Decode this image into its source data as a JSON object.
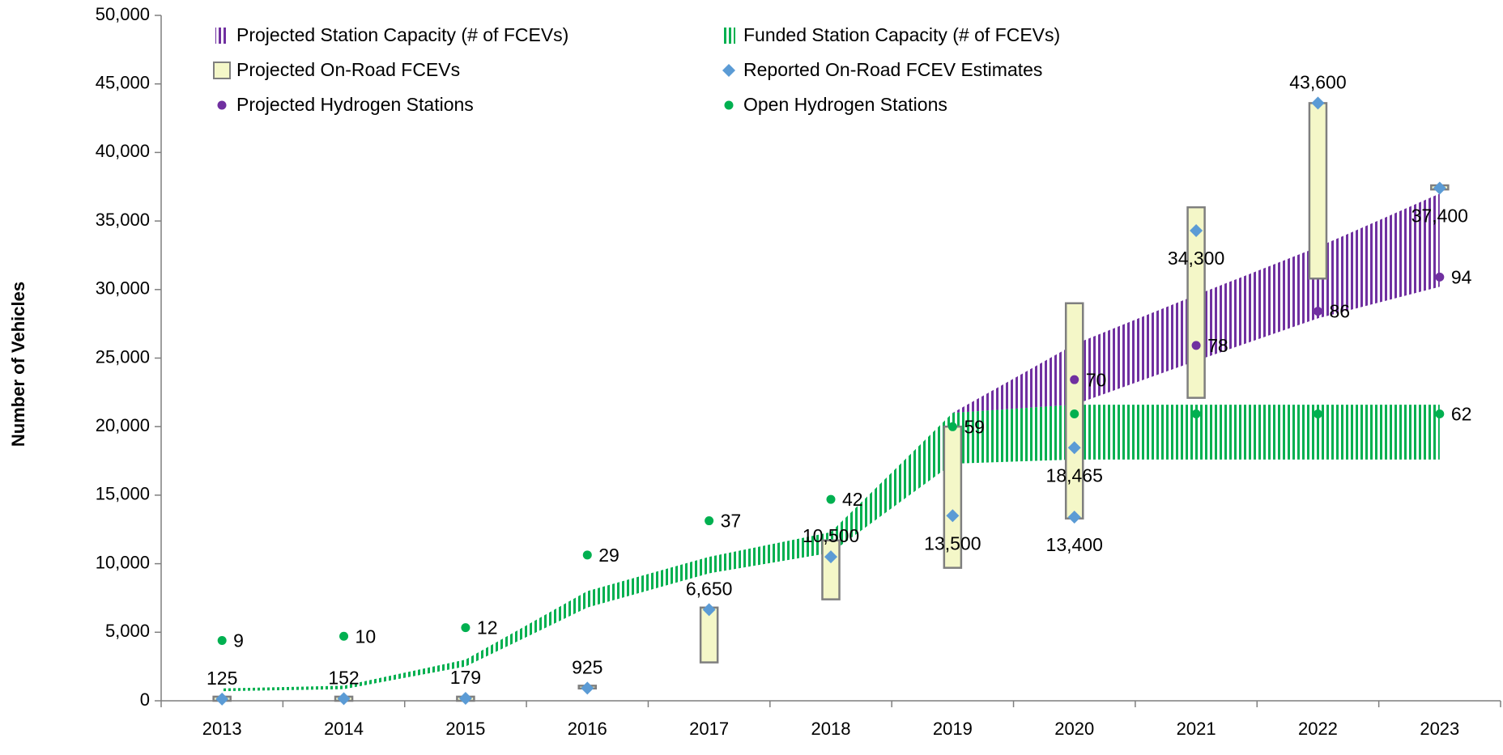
{
  "chart_data": {
    "type": "combo",
    "y_axis_label": "Number of Vehicles",
    "categories": [
      "2013",
      "2014",
      "2015",
      "2016",
      "2017",
      "2018",
      "2019",
      "2020",
      "2021",
      "2022",
      "2023"
    ],
    "ylim": [
      0,
      50000
    ],
    "yticks": [
      0,
      {
        "value": 5000,
        "label": "5,000"
      },
      {
        "value": 10000,
        "label": "10,000"
      },
      {
        "value": 15000,
        "label": "15,000"
      },
      {
        "value": 20000,
        "label": "20,000"
      },
      {
        "value": 25000,
        "label": "25,000"
      },
      {
        "value": 30000,
        "label": "30,000"
      },
      {
        "value": 35000,
        "label": "35,000"
      },
      {
        "value": 40000,
        "label": "40,000"
      },
      {
        "value": 45000,
        "label": "45,000"
      },
      {
        "value": 50000,
        "label": "50,000"
      }
    ],
    "y2lim": [
      -5.1,
      155.2
    ],
    "series": [
      {
        "name": "Projected Station Capacity (# of FCEVs)",
        "kind": "band",
        "color": "#7030a0",
        "low": [
          null,
          null,
          null,
          null,
          null,
          null,
          21000,
          21600,
          24800,
          27900,
          30200
        ],
        "high": [
          null,
          null,
          null,
          null,
          null,
          null,
          21000,
          26000,
          29600,
          33100,
          37000
        ]
      },
      {
        "name": "Funded Station Capacity (# of FCEVs)",
        "kind": "band",
        "color": "#00b050",
        "low": [
          700,
          850,
          2500,
          6800,
          9300,
          10800,
          17300,
          17600,
          17600,
          17600,
          17600
        ],
        "high": [
          900,
          1100,
          3000,
          8000,
          10500,
          12300,
          21000,
          21600,
          21600,
          21600,
          21600
        ]
      },
      {
        "name": "Projected On-Road FCEVs",
        "kind": "box",
        "color": "#f4f7c8",
        "edge_color": "#7f7f7f",
        "low": [
          0,
          0,
          0,
          900,
          2800,
          7400,
          9700,
          13300,
          22100,
          30800,
          37300
        ],
        "high": [
          300,
          300,
          300,
          1100,
          6800,
          11700,
          20000,
          29000,
          36000,
          43600,
          37600
        ]
      },
      {
        "name": "Reported On-Road FCEV Estimates",
        "kind": "diamond",
        "color": "#5b9bd5",
        "values": [
          125,
          152,
          179,
          925,
          6650,
          10500,
          13500,
          13400,
          34300,
          43600,
          37400
        ],
        "value_labels": [
          "125",
          "152",
          "179",
          "925",
          "6,650",
          "10,500",
          "13,500",
          "13,400",
          "34,300",
          "43,600",
          "37,400"
        ],
        "label_pos": [
          "above",
          "above",
          "above",
          "above",
          "above",
          "above",
          "below",
          "below",
          "below",
          "above",
          "below"
        ],
        "extra_values": [
          null,
          null,
          null,
          null,
          null,
          null,
          null,
          18465,
          null,
          null,
          null
        ],
        "extra_value_labels": [
          null,
          null,
          null,
          null,
          null,
          null,
          null,
          "18,465",
          null,
          null,
          null
        ]
      },
      {
        "name": "Projected Hydrogen Stations",
        "kind": "dot",
        "color": "#7030a0",
        "axis": "y2",
        "values": [
          null,
          null,
          null,
          null,
          null,
          null,
          null,
          70,
          78,
          86,
          94
        ],
        "show_labels": [
          false,
          false,
          false,
          false,
          false,
          false,
          false,
          true,
          true,
          true,
          true
        ]
      },
      {
        "name": "Open Hydrogen Stations",
        "kind": "dot",
        "color": "#00b050",
        "axis": "y2",
        "values": [
          9,
          10,
          12,
          29,
          37,
          42,
          59,
          62,
          62,
          62,
          62
        ],
        "show_labels": [
          true,
          true,
          true,
          true,
          true,
          true,
          true,
          false,
          false,
          false,
          true
        ]
      }
    ]
  }
}
